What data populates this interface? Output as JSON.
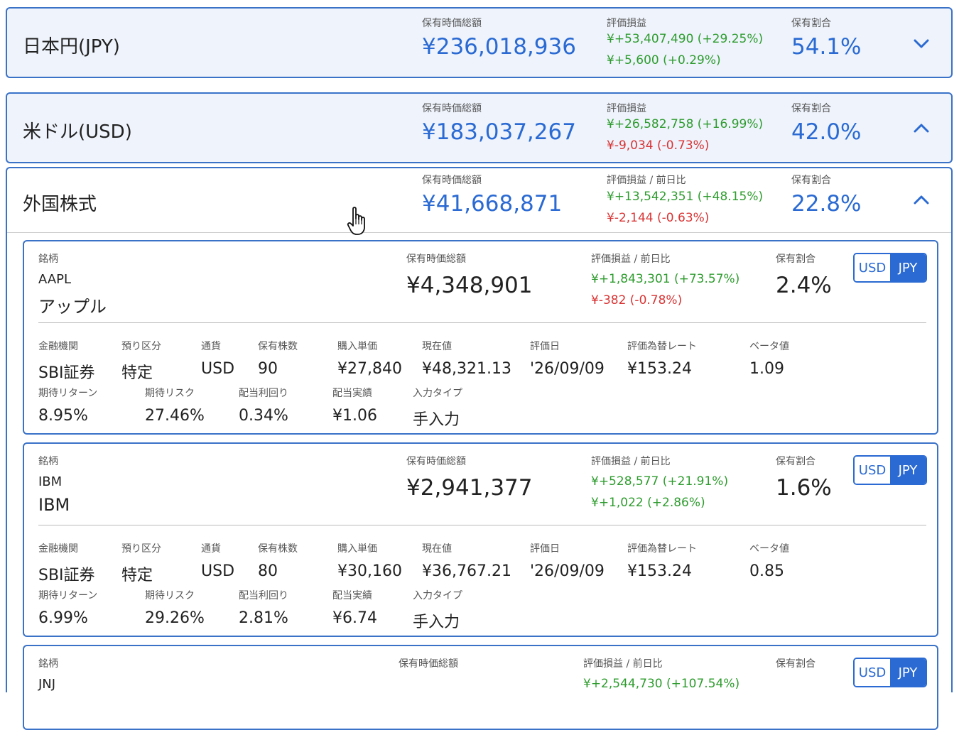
{
  "currencies": [
    {
      "name": "日本円(JPY)",
      "value_label": "保有時価総額",
      "value": "¥236,018,936",
      "pl_label": "評価損益",
      "pl_total": "¥+53,407,490 (+29.25%)",
      "pl_day": "¥+5,600 (+0.29%)",
      "ratio_label": "保有割合",
      "ratio": "54.1%",
      "chevron": "chevron-down-icon"
    },
    {
      "name": "米ドル(USD)",
      "value_label": "保有時価総額",
      "value": "¥183,037,267",
      "pl_label": "評価損益",
      "pl_total": "¥+26,582,758 (+16.99%)",
      "pl_day": "¥-9,034 (-0.73%)",
      "ratio_label": "保有割合",
      "ratio": "42.0%",
      "chevron": "chevron-up-icon"
    }
  ],
  "foreign_stocks": {
    "name": "外国株式",
    "value_label": "保有時価総額",
    "value": "¥41,668,871",
    "pl_label": "評価損益 / 前日比",
    "pl_total": "¥+13,542,351 (+48.15%)",
    "pl_day": "¥-2,144 (-0.63%)",
    "ratio_label": "保有割合",
    "ratio": "22.8%",
    "chevron": "chevron-up-icon"
  },
  "labels": {
    "ticker": "銘柄",
    "value": "保有時価総額",
    "pl": "評価損益 / 前日比",
    "ratio": "保有割合",
    "usd": "USD",
    "jpy": "JPY",
    "institution": "金融機関",
    "account_type": "預り区分",
    "currency": "通貨",
    "shares": "保有株数",
    "purchase_price": "購入単価",
    "current_price": "現在値",
    "valuation_date": "評価日",
    "fx_rate": "評価為替レート",
    "beta": "ベータ値",
    "expected_return": "期待リターン",
    "expected_risk": "期待リスク",
    "dividend_yield": "配当利回り",
    "dividend_actual": "配当実績",
    "input_type": "入力タイプ"
  },
  "stocks": [
    {
      "symbol": "AAPL",
      "name": "アップル",
      "value": "¥4,348,901",
      "pl_total": "¥+1,843,301 (+73.57%)",
      "pl_day": "¥-382 (-0.78%)",
      "pl_day_color": "red",
      "ratio": "2.4%",
      "institution": "SBI証券",
      "account_type": "特定",
      "currency": "USD",
      "shares": "90",
      "purchase_price": "¥27,840",
      "current_price": "¥48,321.13",
      "valuation_date": "'26/09/09",
      "fx_rate": "¥153.24",
      "beta": "1.09",
      "expected_return": "8.95%",
      "expected_risk": "27.46%",
      "dividend_yield": "0.34%",
      "dividend_actual": "¥1.06",
      "input_type": "手入力"
    },
    {
      "symbol": "IBM",
      "name": "IBM",
      "value": "¥2,941,377",
      "pl_total": "¥+528,577 (+21.91%)",
      "pl_day": "¥+1,022 (+2.86%)",
      "pl_day_color": "green",
      "ratio": "1.6%",
      "institution": "SBI証券",
      "account_type": "特定",
      "currency": "USD",
      "shares": "80",
      "purchase_price": "¥30,160",
      "current_price": "¥36,767.21",
      "valuation_date": "'26/09/09",
      "fx_rate": "¥153.24",
      "beta": "0.85",
      "expected_return": "6.99%",
      "expected_risk": "29.26%",
      "dividend_yield": "2.81%",
      "dividend_actual": "¥6.74",
      "input_type": "手入力"
    }
  ],
  "partial_stock": {
    "symbol": "JNJ",
    "pl_total": "¥+2,544,730 (+107.54%)"
  },
  "colors": {
    "accent": "#2a6ad2",
    "border": "#3a72c8",
    "positive": "#2e9c2e",
    "negative": "#d93434",
    "header_bg": "#eef3fc"
  }
}
